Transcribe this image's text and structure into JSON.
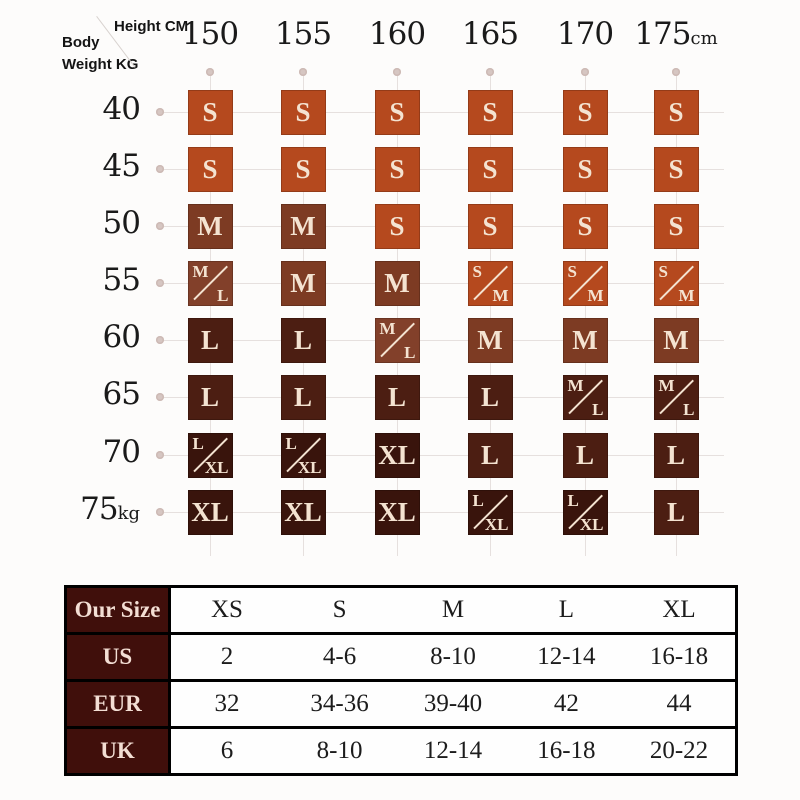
{
  "size_guide": {
    "corner": {
      "height_label": "Height CM",
      "body_label": "Body",
      "weight_label": "Weight  KG"
    },
    "heights": [
      "150",
      "155",
      "160",
      "165",
      "170",
      "175"
    ],
    "height_unit": "cm",
    "weights": [
      "40",
      "45",
      "50",
      "55",
      "60",
      "65",
      "70",
      "75"
    ],
    "weight_unit": "kg",
    "cell_text_color": "#f4e3d1",
    "size_styles": {
      "S": {
        "label": "S",
        "color": "#b5491e"
      },
      "SM": {
        "label": "S/M",
        "parts": [
          "S",
          "M"
        ],
        "color": "#b5491e"
      },
      "M": {
        "label": "M",
        "color": "#7d3b23"
      },
      "ML": {
        "label": "M/L",
        "parts": [
          "M",
          "L"
        ],
        "color": "#82402a"
      },
      "MLD": {
        "label": "M/L",
        "parts": [
          "M",
          "L"
        ],
        "color": "#4c1e12"
      },
      "L": {
        "label": "L",
        "color": "#4c1e12"
      },
      "LXL": {
        "label": "L/XL",
        "parts": [
          "L",
          "XL"
        ],
        "color": "#39140c"
      },
      "XL": {
        "label": "XL",
        "color": "#39140c"
      }
    },
    "rows": [
      {
        "weight": "40",
        "cells": [
          "S",
          "S",
          "S",
          "S",
          "S",
          "S"
        ]
      },
      {
        "weight": "45",
        "cells": [
          "S",
          "S",
          "S",
          "S",
          "S",
          "S"
        ]
      },
      {
        "weight": "50",
        "cells": [
          "M",
          "M",
          "S",
          "S",
          "S",
          "S"
        ]
      },
      {
        "weight": "55",
        "cells": [
          "ML",
          "M",
          "M",
          "SM",
          "SM",
          "SM"
        ]
      },
      {
        "weight": "60",
        "cells": [
          "L",
          "L",
          "ML",
          "M",
          "M",
          "M"
        ]
      },
      {
        "weight": "65",
        "cells": [
          "L",
          "L",
          "L",
          "L",
          "MLD",
          "MLD"
        ]
      },
      {
        "weight": "70",
        "cells": [
          "LXL",
          "LXL",
          "XL",
          "L",
          "L",
          "L"
        ]
      },
      {
        "weight": "75",
        "cells": [
          "XL",
          "XL",
          "XL",
          "LXL",
          "LXL",
          "L"
        ]
      }
    ]
  },
  "conversion_table": {
    "header_bg": "#400f0b",
    "header_text_color": "#f3ded4",
    "rows": [
      {
        "label": "Our Size",
        "values": [
          "XS",
          "S",
          "M",
          "L",
          "XL"
        ]
      },
      {
        "label": "US",
        "values": [
          "2",
          "4-6",
          "8-10",
          "12-14",
          "16-18"
        ]
      },
      {
        "label": "EUR",
        "values": [
          "32",
          "34-36",
          "39-40",
          "42",
          "44"
        ]
      },
      {
        "label": "UK",
        "values": [
          "6",
          "8-10",
          "12-14",
          "16-18",
          "20-22"
        ]
      }
    ]
  },
  "chart_data": [
    {
      "type": "heatmap",
      "title": "Size guide by body height and weight",
      "xlabel": "Height CM",
      "ylabel": "Body Weight KG",
      "x": [
        150,
        155,
        160,
        165,
        170,
        175
      ],
      "y": [
        40,
        45,
        50,
        55,
        60,
        65,
        70,
        75
      ],
      "values": [
        [
          "S",
          "S",
          "S",
          "S",
          "S",
          "S"
        ],
        [
          "S",
          "S",
          "S",
          "S",
          "S",
          "S"
        ],
        [
          "M",
          "M",
          "S",
          "S",
          "S",
          "S"
        ],
        [
          "M/L",
          "M",
          "M",
          "S/M",
          "S/M",
          "S/M"
        ],
        [
          "L",
          "L",
          "M/L",
          "M",
          "M",
          "M"
        ],
        [
          "L",
          "L",
          "L",
          "L",
          "M/L",
          "M/L"
        ],
        [
          "L/XL",
          "L/XL",
          "XL",
          "L",
          "L",
          "L"
        ],
        [
          "XL",
          "XL",
          "XL",
          "L/XL",
          "L/XL",
          "L"
        ]
      ],
      "legend_position": "none",
      "grid": true
    },
    {
      "type": "table",
      "title": "Size conversion",
      "columns": [
        "Our Size",
        "XS",
        "S",
        "M",
        "L",
        "XL"
      ],
      "rows": [
        [
          "US",
          "2",
          "4-6",
          "8-10",
          "12-14",
          "16-18"
        ],
        [
          "EUR",
          "32",
          "34-36",
          "39-40",
          "42",
          "44"
        ],
        [
          "UK",
          "6",
          "8-10",
          "12-14",
          "16-18",
          "20-22"
        ]
      ]
    }
  ]
}
